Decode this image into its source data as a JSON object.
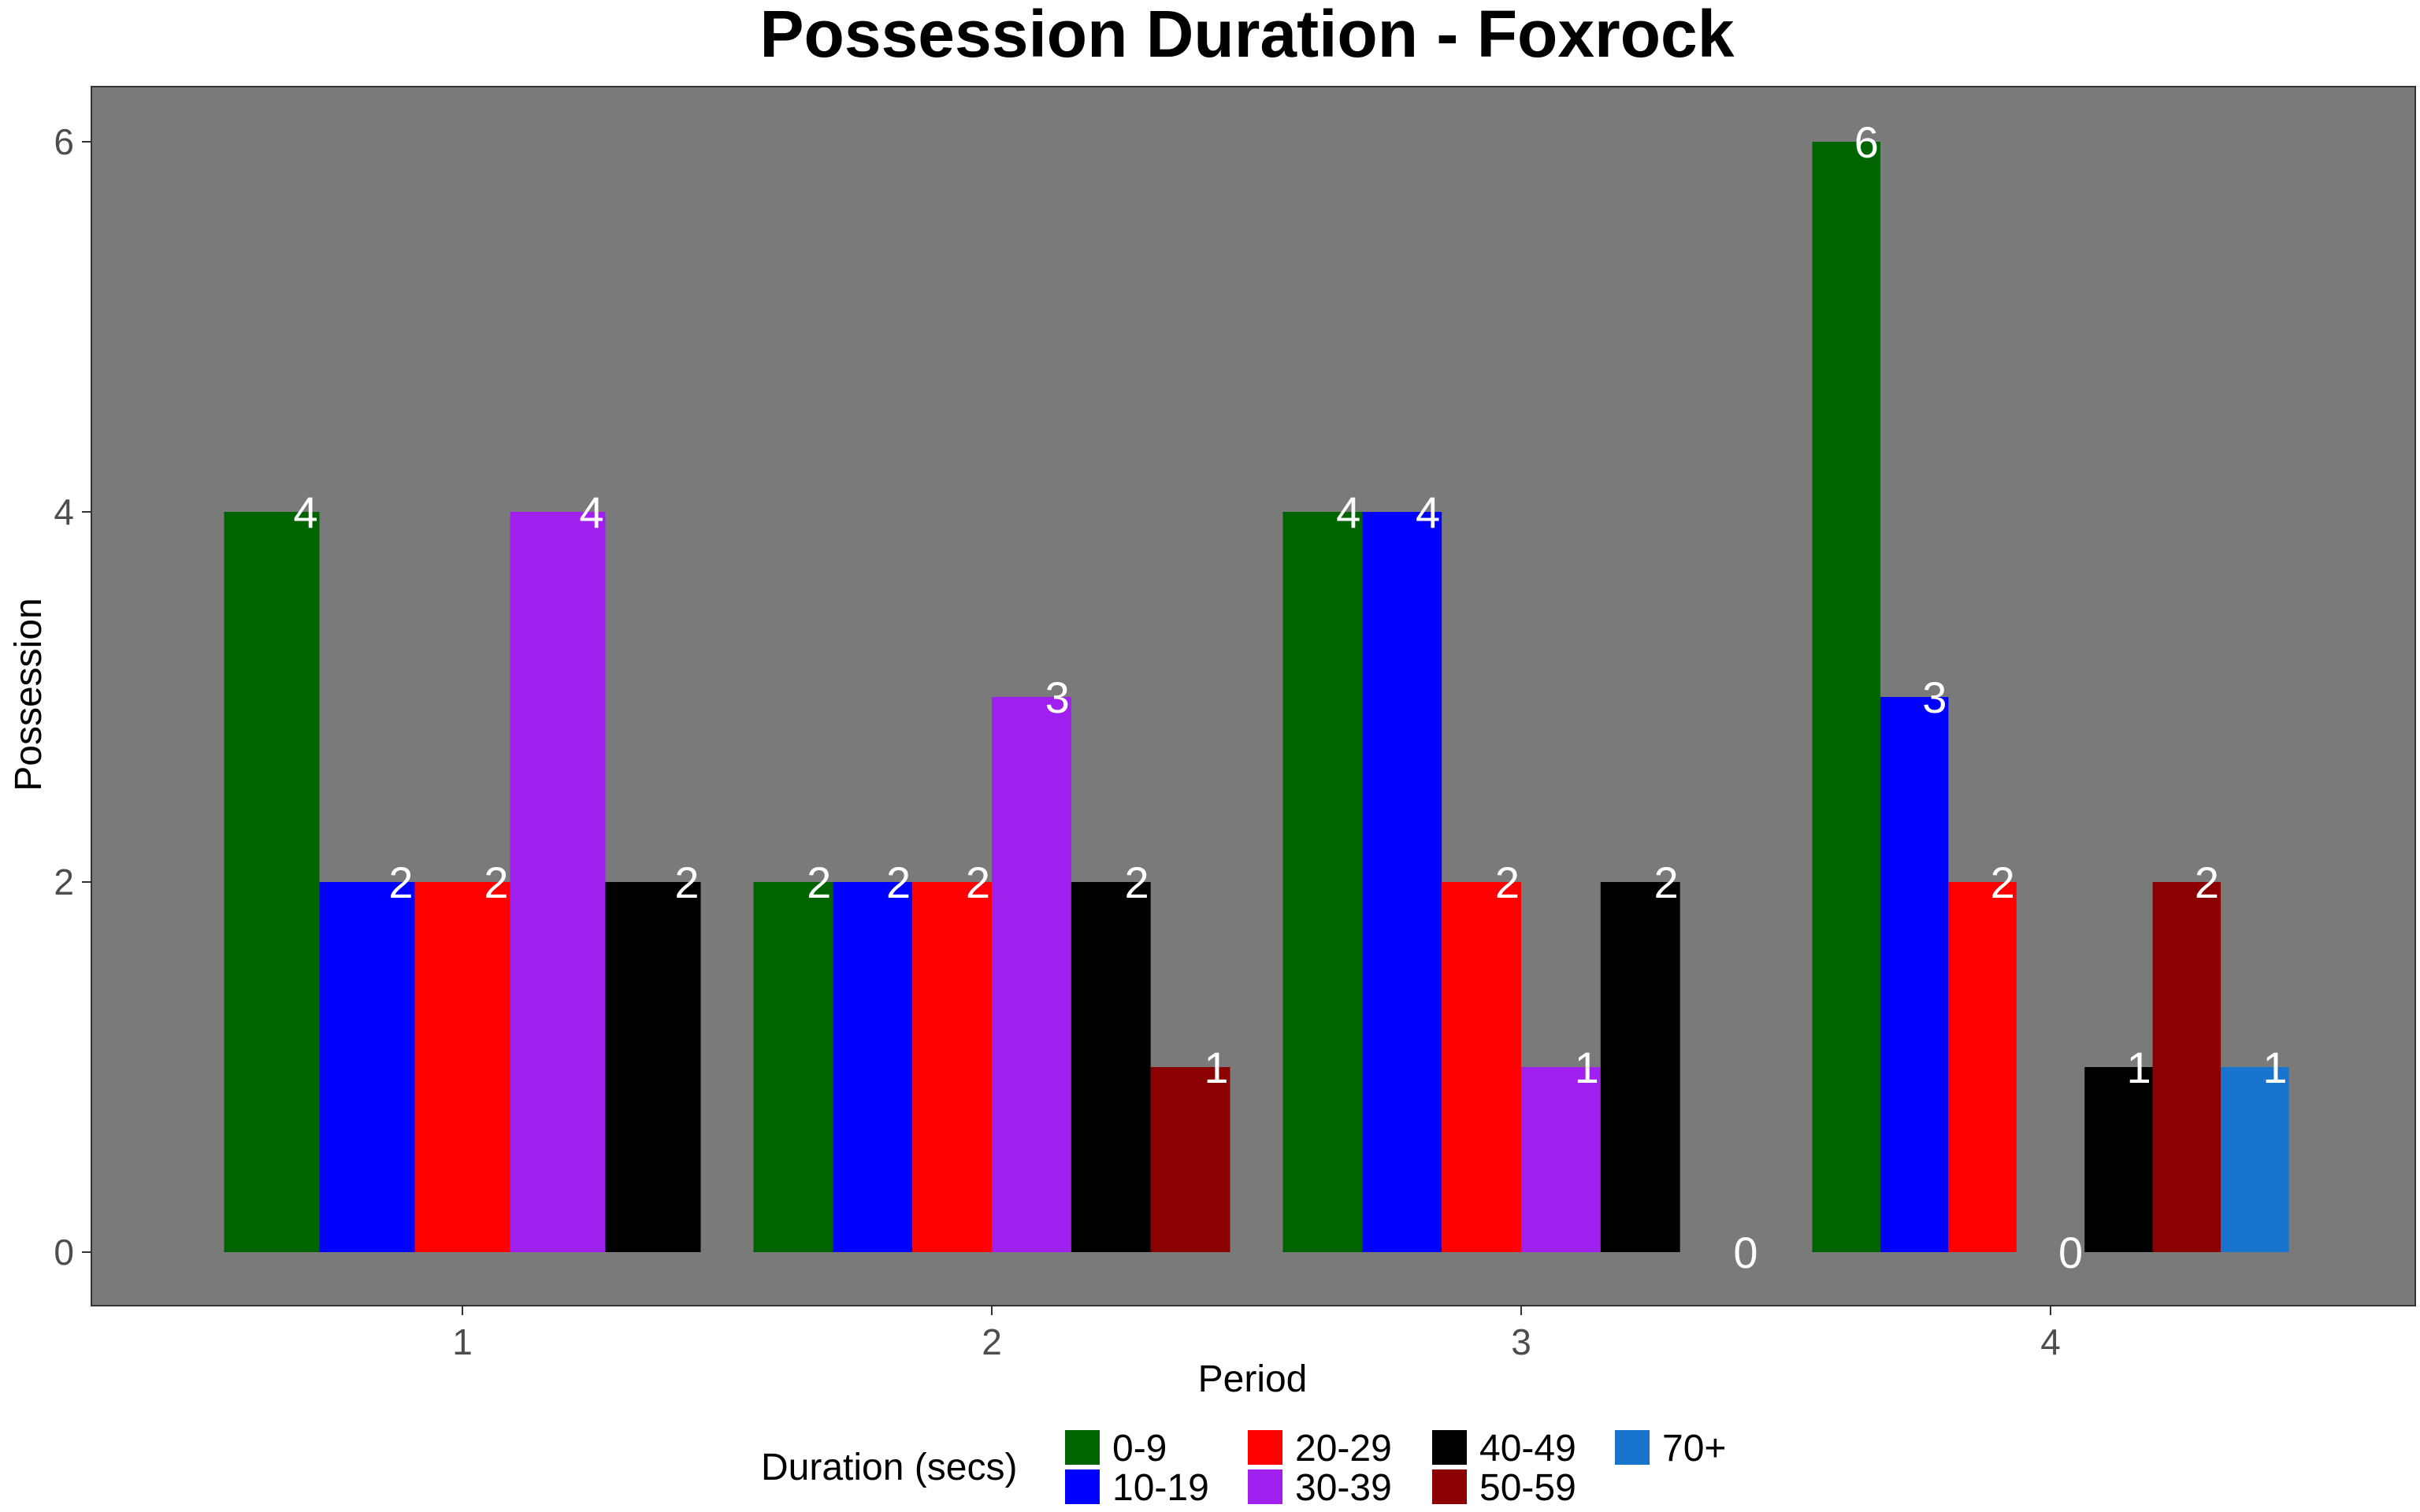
{
  "chart_data": {
    "type": "bar",
    "title": "Possession Duration - Foxrock",
    "xlabel": "Period",
    "ylabel": "Possession",
    "categories": [
      "1",
      "2",
      "3",
      "4"
    ],
    "ylim": [
      0,
      6
    ],
    "yticks": [
      0,
      2,
      4,
      6
    ],
    "grid": false,
    "panel_background": "#7a7a7a",
    "legend": {
      "title": "Duration (secs)",
      "placement": "bottom"
    },
    "series": [
      {
        "name": "0-9",
        "color": "#006400",
        "values": [
          4,
          2,
          4,
          6
        ]
      },
      {
        "name": "10-19",
        "color": "#0000ff",
        "values": [
          2,
          2,
          4,
          3
        ]
      },
      {
        "name": "20-29",
        "color": "#ff0000",
        "values": [
          2,
          2,
          2,
          2
        ]
      },
      {
        "name": "30-39",
        "color": "#a020f0",
        "values": [
          4,
          3,
          1,
          0
        ]
      },
      {
        "name": "40-49",
        "color": "#000000",
        "values": [
          2,
          2,
          2,
          1
        ]
      },
      {
        "name": "50-59",
        "color": "#8b0000",
        "values": [
          null,
          1,
          0,
          2
        ]
      },
      {
        "name": "70+",
        "color": "#1874cd",
        "values": [
          null,
          null,
          null,
          1
        ]
      }
    ]
  }
}
